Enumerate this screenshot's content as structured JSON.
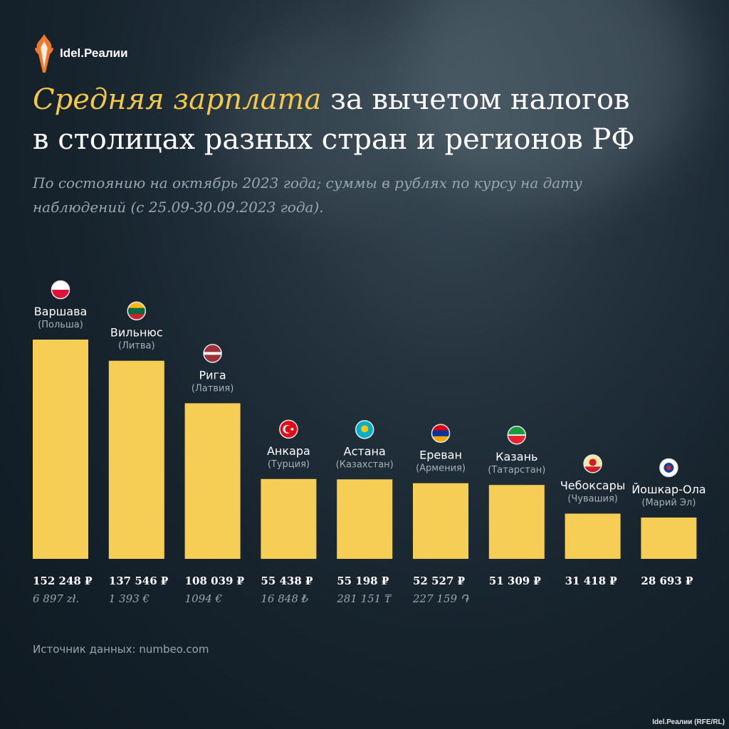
{
  "brand": {
    "name": "Idel.Реалии"
  },
  "title_highlight": "Средняя зарплата",
  "title_rest_1": " за вычетом налогов",
  "title_rest_2": "в столицах разных стран и регионов РФ",
  "subtitle": "По состоянию на октябрь 2023 года; суммы в рублях по курсу на дату наблюдений (с 25.09-30.09.2023 года).",
  "source": "Источник данных: numbeo.com",
  "credit": "Idel.Реалии (RFE/RL)",
  "colors": {
    "bar": "#f6cd55",
    "accent": "#f5c84a",
    "background": "#16232d"
  },
  "chart_data": {
    "type": "bar",
    "categories": [
      "Варшава",
      "Вильнюс",
      "Рига",
      "Анкара",
      "Астана",
      "Ереван",
      "Казань",
      "Чебоксары",
      "Йошкар-Ола"
    ],
    "regions": [
      "(Польша)",
      "(Литва)",
      "(Латвия)",
      "(Турция)",
      "(Казахстан)",
      "(Армения)",
      "(Татарстан)",
      "(Чувашия)",
      "(Марий Эл)"
    ],
    "flags": [
      "poland-flag-icon",
      "lithuania-flag-icon",
      "latvia-flag-icon",
      "turkey-flag-icon",
      "kazakhstan-flag-icon",
      "armenia-flag-icon",
      "tatarstan-flag-icon",
      "chuvashia-flag-icon",
      "mari-el-flag-icon"
    ],
    "values": [
      152248,
      137546,
      108039,
      55438,
      55198,
      52527,
      51309,
      31418,
      28693
    ],
    "value_labels": [
      "152 248 ₽",
      "137 546 ₽",
      "108 039 ₽",
      "55 438 ₽",
      "55 198 ₽",
      "52 527 ₽",
      "51 309 ₽",
      "31 418 ₽",
      "28 693 ₽"
    ],
    "local_labels": [
      "6 897 zł.",
      "1 393 €",
      "1094 €",
      "16 848 ₺",
      "281 151 ₸",
      "227 159 ֏",
      "",
      "",
      ""
    ],
    "ylim": [
      0,
      152248
    ]
  }
}
